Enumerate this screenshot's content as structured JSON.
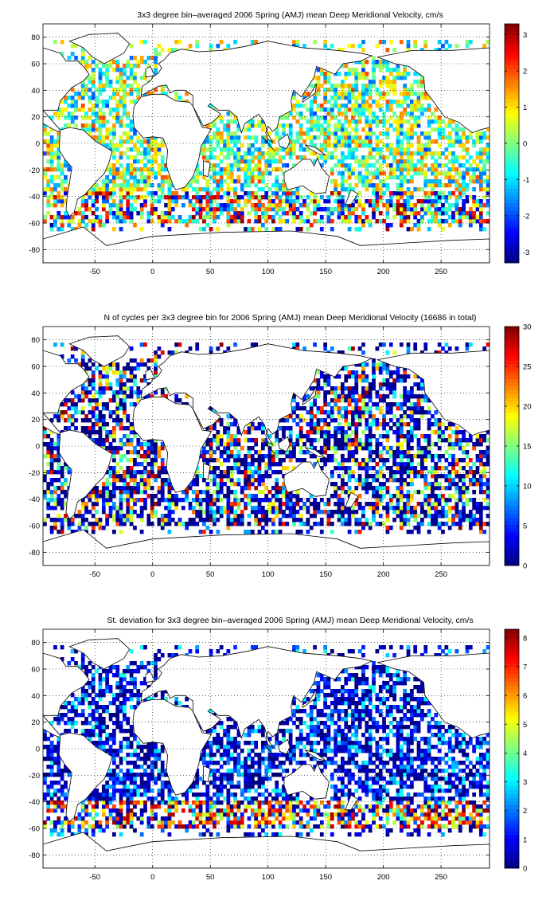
{
  "chart_data": [
    {
      "type": "heatmap",
      "title": "3x3 degree bin–averaged 2006 Spring (AMJ) mean Deep Meridional Velocity, cm/s",
      "xlabel": "",
      "ylabel": "",
      "xlim": [
        -95,
        292
      ],
      "ylim": [
        -90,
        90
      ],
      "x_ticks": [
        -50,
        0,
        50,
        100,
        150,
        200,
        250
      ],
      "y_ticks": [
        -80,
        -60,
        -40,
        -20,
        0,
        20,
        40,
        60,
        80
      ],
      "grid": "dotted",
      "colorbar": {
        "range": [
          -3.3,
          3.3
        ],
        "ticks": [
          -3,
          -2,
          -1,
          0,
          1,
          2,
          3
        ]
      },
      "cell_size_deg": 3,
      "pattern": "signed"
    },
    {
      "type": "heatmap",
      "title": "N of cycles per 3x3 degree bin for 2006 Spring (AMJ) mean Deep Meridional Velocity (16686 in total)",
      "xlabel": "",
      "ylabel": "",
      "xlim": [
        -95,
        292
      ],
      "ylim": [
        -90,
        90
      ],
      "x_ticks": [
        -50,
        0,
        50,
        100,
        150,
        200,
        250
      ],
      "y_ticks": [
        -80,
        -60,
        -40,
        -20,
        0,
        20,
        40,
        60,
        80
      ],
      "grid": "dotted",
      "colorbar": {
        "range": [
          0,
          30
        ],
        "ticks": [
          0,
          5,
          10,
          15,
          20,
          25,
          30
        ]
      },
      "cell_size_deg": 3,
      "pattern": "counts"
    },
    {
      "type": "heatmap",
      "title": "St. deviation for 3x3 degree bin–averaged 2006 Spring (AMJ) mean Deep Meridional Velocity, cm/s",
      "xlabel": "",
      "ylabel": "",
      "xlim": [
        -95,
        292
      ],
      "ylim": [
        -90,
        90
      ],
      "x_ticks": [
        -50,
        0,
        50,
        100,
        150,
        200,
        250
      ],
      "y_ticks": [
        -80,
        -60,
        -40,
        -20,
        0,
        20,
        40,
        60,
        80
      ],
      "grid": "dotted",
      "colorbar": {
        "range": [
          0,
          8.3
        ],
        "ticks": [
          0,
          1,
          2,
          3,
          4,
          5,
          6,
          7,
          8
        ]
      },
      "cell_size_deg": 3,
      "pattern": "stdev"
    }
  ],
  "colormap": "jet",
  "land_color": "#ffffff",
  "coast_color": "#000000"
}
